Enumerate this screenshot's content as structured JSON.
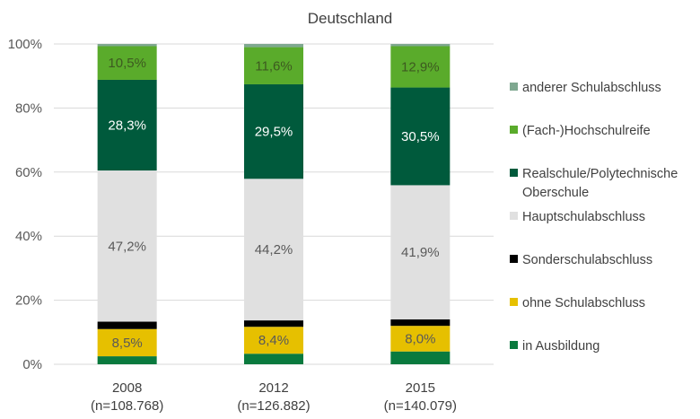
{
  "chart_data": {
    "type": "bar",
    "stacked": true,
    "normalized": true,
    "title": "Deutschland",
    "categories": [
      "2008\n(n=108.768)",
      "2012\n(n=126.882)",
      "2015\n(n=140.079)"
    ],
    "ylim": [
      0,
      100
    ],
    "yticks": [
      "0%",
      "20%",
      "40%",
      "60%",
      "80%",
      "100%"
    ],
    "grid": true,
    "legend_position": "right",
    "series": [
      {
        "name": "in Ausbildung",
        "color": "#0a7a3e",
        "values": [
          2.5,
          3.3,
          4.0
        ],
        "labels": [
          "",
          "",
          ""
        ],
        "label_color": "#ffffff"
      },
      {
        "name": "ohne Schulabschluss",
        "color": "#e6c000",
        "values": [
          8.5,
          8.4,
          8.0
        ],
        "labels": [
          "8,5%",
          "8,4%",
          "8,0%"
        ],
        "label_color": "#595959"
      },
      {
        "name": "Sonderschulabschluss",
        "color": "#000000",
        "values": [
          2.3,
          2.0,
          2.0
        ],
        "labels": [
          "",
          "",
          ""
        ],
        "label_color": "#ffffff"
      },
      {
        "name": "Hauptschulabschluss",
        "color": "#e0e0e0",
        "values": [
          47.2,
          44.2,
          41.9
        ],
        "labels": [
          "47,2%",
          "44,2%",
          "41,9%"
        ],
        "label_color": "#595959"
      },
      {
        "name": "Realschule/Polytechnische Oberschule",
        "color": "#005a3c",
        "values": [
          28.3,
          29.5,
          30.5
        ],
        "labels": [
          "28,3%",
          "29,5%",
          "30,5%"
        ],
        "label_color": "#ffffff"
      },
      {
        "name": "(Fach-)Hochschulreife",
        "color": "#5aab2b",
        "values": [
          10.5,
          11.6,
          12.9
        ],
        "labels": [
          "10,5%",
          "11,6%",
          "12,9%"
        ],
        "label_color": "#3d5a20"
      },
      {
        "name": "anderer Schulabschluss",
        "color": "#7fa890",
        "values": [
          0.7,
          1.0,
          0.7
        ],
        "labels": [
          "",
          "",
          ""
        ],
        "label_color": "#ffffff"
      }
    ]
  }
}
